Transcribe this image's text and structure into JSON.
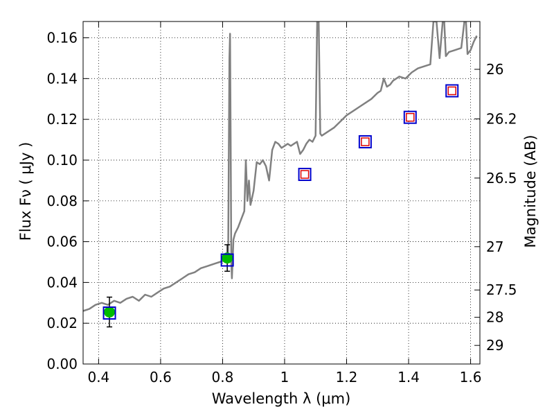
{
  "chart_data": {
    "type": "line",
    "xlabel": "Wavelength  λ (μm)",
    "ylabel": "Flux  Fν  ( μJy )",
    "y2label": "Magnitude (AB)",
    "xlim": [
      0.35,
      1.63
    ],
    "ylim": [
      0,
      0.168
    ],
    "grid": true,
    "x_ticks": [
      0.4,
      0.6,
      0.8,
      1.0,
      1.2,
      1.4,
      1.6
    ],
    "x_tick_labels": [
      "0.4",
      "0.6",
      "0.8",
      "1",
      "1.2",
      "1.4",
      "1.6"
    ],
    "y_ticks": [
      0,
      0.02,
      0.04,
      0.06,
      0.08,
      0.1,
      0.12,
      0.14,
      0.16
    ],
    "y_tick_labels": [
      "0.00",
      "0.02",
      "0.04",
      "0.06",
      "0.08",
      "0.10",
      "0.12",
      "0.14",
      "0.16"
    ],
    "y2_ticks": [
      26,
      26.2,
      26.5,
      27,
      27.5,
      28,
      29
    ],
    "y2_tick_labels": [
      "26",
      "26.2",
      "26.5",
      "27",
      "27.5",
      "28",
      "29"
    ],
    "colors": {
      "spectrum": "#808080",
      "model_box": "#0000cc",
      "upper_box": "#dd0000",
      "detection": "#00bb00",
      "errorbar": "#000000"
    },
    "series": [
      {
        "kind": "spectrum",
        "x": [
          0.35,
          0.37,
          0.39,
          0.41,
          0.43,
          0.45,
          0.47,
          0.49,
          0.51,
          0.53,
          0.55,
          0.57,
          0.59,
          0.61,
          0.63,
          0.65,
          0.67,
          0.69,
          0.71,
          0.73,
          0.75,
          0.77,
          0.79,
          0.81,
          0.818,
          0.822,
          0.824,
          0.826,
          0.828,
          0.83,
          0.835,
          0.84,
          0.85,
          0.86,
          0.87,
          0.875,
          0.88,
          0.885,
          0.89,
          0.9,
          0.91,
          0.92,
          0.93,
          0.94,
          0.95,
          0.96,
          0.97,
          0.98,
          0.99,
          1.0,
          1.01,
          1.02,
          1.03,
          1.04,
          1.05,
          1.06,
          1.07,
          1.08,
          1.09,
          1.1,
          1.105,
          1.11,
          1.115,
          1.12,
          1.14,
          1.16,
          1.18,
          1.2,
          1.22,
          1.24,
          1.26,
          1.28,
          1.3,
          1.31,
          1.32,
          1.33,
          1.34,
          1.35,
          1.37,
          1.39,
          1.41,
          1.43,
          1.45,
          1.47,
          1.48,
          1.49,
          1.5,
          1.51,
          1.515,
          1.52,
          1.525,
          1.53,
          1.55,
          1.57,
          1.58,
          1.585,
          1.59,
          1.6,
          1.61,
          1.62
        ],
        "y": [
          0.026,
          0.027,
          0.029,
          0.03,
          0.029,
          0.031,
          0.03,
          0.032,
          0.033,
          0.031,
          0.034,
          0.033,
          0.035,
          0.037,
          0.038,
          0.04,
          0.042,
          0.044,
          0.045,
          0.047,
          0.048,
          0.049,
          0.05,
          0.051,
          0.055,
          0.15,
          0.162,
          0.11,
          0.05,
          0.042,
          0.061,
          0.064,
          0.067,
          0.071,
          0.075,
          0.1,
          0.08,
          0.09,
          0.078,
          0.085,
          0.099,
          0.098,
          0.1,
          0.097,
          0.09,
          0.105,
          0.109,
          0.108,
          0.106,
          0.107,
          0.108,
          0.107,
          0.108,
          0.109,
          0.103,
          0.105,
          0.108,
          0.11,
          0.109,
          0.112,
          0.168,
          0.168,
          0.113,
          0.112,
          0.114,
          0.116,
          0.119,
          0.122,
          0.124,
          0.126,
          0.128,
          0.13,
          0.133,
          0.134,
          0.14,
          0.136,
          0.137,
          0.139,
          0.141,
          0.14,
          0.143,
          0.145,
          0.146,
          0.147,
          0.168,
          0.168,
          0.15,
          0.168,
          0.168,
          0.151,
          0.152,
          0.153,
          0.154,
          0.155,
          0.168,
          0.168,
          0.152,
          0.154,
          0.158,
          0.161
        ]
      },
      {
        "kind": "model_photometry",
        "points": [
          {
            "x": 0.435,
            "y": 0.025
          },
          {
            "x": 0.815,
            "y": 0.051
          },
          {
            "x": 1.065,
            "y": 0.093
          },
          {
            "x": 1.26,
            "y": 0.109
          },
          {
            "x": 1.405,
            "y": 0.121
          },
          {
            "x": 1.54,
            "y": 0.134
          }
        ]
      },
      {
        "kind": "upper_limits",
        "points": [
          {
            "x": 1.065,
            "y": 0.093
          },
          {
            "x": 1.26,
            "y": 0.109
          },
          {
            "x": 1.405,
            "y": 0.121
          },
          {
            "x": 1.54,
            "y": 0.134
          }
        ]
      },
      {
        "kind": "detections",
        "points": [
          {
            "x": 0.435,
            "y": 0.0255,
            "err": 0.0073
          },
          {
            "x": 0.815,
            "y": 0.052,
            "err": 0.0065
          }
        ]
      }
    ]
  }
}
